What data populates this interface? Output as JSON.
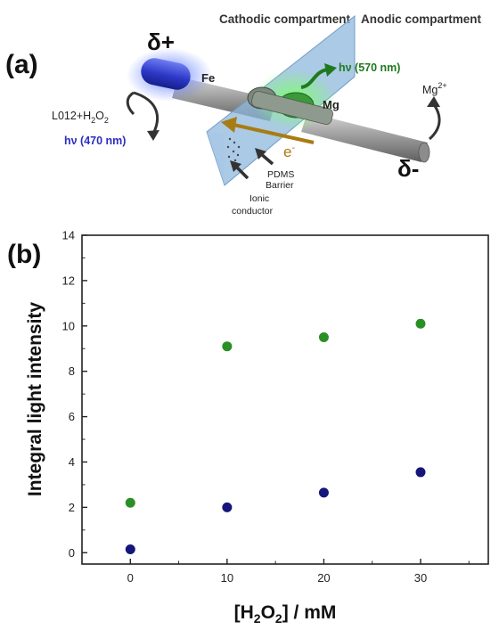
{
  "panel_a": {
    "label": "(a)",
    "cathodic": "Cathodic compartment",
    "anodic": "Anodic compartment",
    "delta_plus": "δ+",
    "delta_minus": "δ-",
    "fe": "Fe",
    "mg": "Mg",
    "reagent_base": "L012+H",
    "reagent_sub2": "2",
    "reagent_o": "O",
    "reagent_sub2b": "2",
    "hv_blue": "hν (470 nm)",
    "hv_green": "hν (570 nm)",
    "mg_ion": "Mg",
    "mg_charge": "2+",
    "electron": "e",
    "electron_sup": "-",
    "pdms": "PDMS",
    "barrier": "Barrier",
    "ionic": "Ionic",
    "conductor": "conductor",
    "colors": {
      "blue_glow": "#2f49d8",
      "green_glow": "#2fbf2f",
      "electron_arrow": "#a87c12",
      "membrane": "#8fb8dc"
    }
  },
  "panel_b": {
    "label": "(b)"
  },
  "chart_data": {
    "type": "scatter",
    "xlabel_prefix": "[H",
    "xlabel_sub1": "2",
    "xlabel_mid": "O",
    "xlabel_sub2": "2",
    "xlabel_suffix": "] / mM",
    "ylabel": "Integral light intensity",
    "xlim": [
      -5,
      37
    ],
    "ylim": [
      -0.5,
      14
    ],
    "xticks": [
      0,
      10,
      20,
      30
    ],
    "yticks": [
      0,
      2,
      4,
      6,
      8,
      10,
      12,
      14
    ],
    "grid": false,
    "series": [
      {
        "color": "#2a8f24",
        "x": [
          0,
          10,
          20,
          30
        ],
        "y": [
          2.2,
          9.1,
          9.5,
          10.1
        ]
      },
      {
        "color": "#15157a",
        "x": [
          0,
          10,
          20,
          30
        ],
        "y": [
          0.15,
          2.0,
          2.65,
          3.55
        ]
      }
    ]
  }
}
